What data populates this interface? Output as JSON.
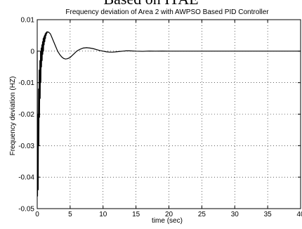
{
  "page_heading": "Based on ITAE",
  "chart_data": {
    "type": "line",
    "title": "Frequency deviation of Area 2 with AWPSO Based PID Controller",
    "xlabel": "time (sec)",
    "ylabel": "Frequency deviation (HZ)",
    "xlim": [
      0,
      40
    ],
    "ylim": [
      -0.05,
      0.01
    ],
    "x_ticks": [
      0,
      5,
      10,
      15,
      20,
      25,
      30,
      35,
      40
    ],
    "x_tick_labels": [
      "0",
      "5",
      "10",
      "15",
      "20",
      "25",
      "30",
      "35",
      "40"
    ],
    "y_ticks": [
      -0.05,
      -0.04,
      -0.03,
      -0.02,
      -0.01,
      0,
      0.01
    ],
    "y_tick_labels": [
      "-0.05",
      "-0.04",
      "-0.03",
      "-0.02",
      "-0.01",
      "0",
      "0.01"
    ],
    "grid": true,
    "grid_style": "dotted",
    "series": [
      {
        "color": "#000000",
        "x": [
          0,
          0.05,
          0.1,
          0.15,
          0.2,
          0.25,
          0.3,
          0.35,
          0.4,
          0.45,
          0.5,
          0.55,
          0.6,
          0.65,
          0.7,
          0.75,
          0.8,
          0.85,
          0.9,
          0.95,
          1.0,
          1.05,
          1.1,
          1.15,
          1.2,
          1.25,
          1.3,
          1.35,
          1.4,
          1.45,
          1.5,
          1.6,
          1.7,
          1.8,
          1.9,
          2.0,
          2.2,
          2.5,
          2.8,
          3.1,
          3.4,
          3.7,
          4.0,
          4.3,
          4.6,
          5.0,
          5.3,
          5.6,
          6.0,
          6.5,
          7.0,
          7.5,
          8.0,
          8.5,
          9.0,
          9.5,
          10.0,
          10.5,
          11.0,
          11.5,
          12.0,
          12.5,
          13.0,
          13.5,
          14.0,
          15.0,
          16.0,
          17.0,
          18.0,
          19.0,
          20.0,
          22.0,
          24.0,
          26.0,
          28.0,
          30.0,
          35.0,
          40.0
        ],
        "y": [
          0,
          -0.046,
          -0.02,
          -0.044,
          -0.012,
          -0.03,
          -0.006,
          -0.021,
          -0.003,
          -0.015,
          0.0,
          -0.01,
          0.001,
          -0.005,
          0.002,
          -0.003,
          0.003,
          -0.001,
          0.004,
          0.0,
          0.0045,
          0.002,
          0.005,
          0.003,
          0.0055,
          0.004,
          0.0058,
          0.005,
          0.006,
          0.0056,
          0.0062,
          0.006,
          0.0061,
          0.0059,
          0.0057,
          0.0055,
          0.0045,
          0.003,
          0.0015,
          0.0,
          -0.001,
          -0.0018,
          -0.0023,
          -0.0025,
          -0.0024,
          -0.002,
          -0.0014,
          -0.0008,
          0.0,
          0.0006,
          0.001,
          0.0011,
          0.001,
          0.0008,
          0.0005,
          0.0002,
          0.0,
          -0.0002,
          -0.0003,
          -0.0003,
          -0.0002,
          -0.0001,
          0.0,
          0.0001,
          0.0001,
          0.0,
          -5e-05,
          3e-05,
          0.0,
          2e-05,
          0.0,
          1e-05,
          0.0,
          0.0,
          0.0,
          0.0,
          0.0,
          0.0
        ]
      }
    ]
  }
}
